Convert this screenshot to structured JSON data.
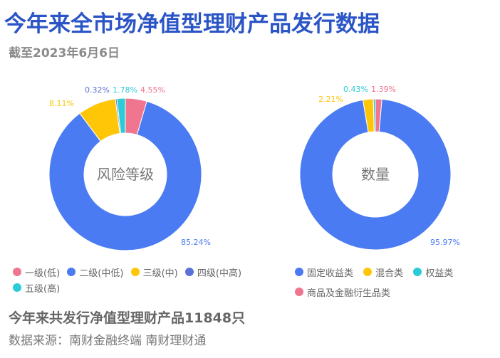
{
  "header": {
    "title": "今年来全市场净值型理财产品发行数据",
    "subtitle": "截至2023年6月6日"
  },
  "footer": {
    "summary": "今年来共发行净值型理财产品11848只",
    "source": "数据来源：南财金融终端 南财理财通"
  },
  "colors": {
    "title": "#2B55C6",
    "pink": "#F0758F",
    "blue": "#4A7BF2",
    "yellow": "#FFC608",
    "indigo": "#5C71D8",
    "cyan": "#2CCBD8"
  },
  "chart_data": [
    {
      "type": "pie",
      "variant": "donut",
      "title": "风险等级",
      "categories": [
        "一级(低)",
        "二级(中低)",
        "三级(中)",
        "四级(中高)",
        "五级(高)"
      ],
      "values": [
        4.55,
        85.24,
        8.11,
        0.32,
        1.78
      ],
      "value_labels": [
        "4.55%",
        "85.24%",
        "8.11%",
        "0.32%",
        "1.78%"
      ],
      "colors": [
        "#F0758F",
        "#4A7BF2",
        "#FFC608",
        "#5C71D8",
        "#2CCBD8"
      ],
      "legend_position": "bottom",
      "start_angle": "12 o'clock, clockwise"
    },
    {
      "type": "pie",
      "variant": "donut",
      "title": "数量",
      "categories": [
        "商品及金融衍生品类",
        "固定收益类",
        "混合类",
        "权益类"
      ],
      "values": [
        1.39,
        95.97,
        2.21,
        0.43
      ],
      "value_labels": [
        "1.39%",
        "95.97%",
        "2.21%",
        "0.43%"
      ],
      "colors": [
        "#F0758F",
        "#4A7BF2",
        "#FFC608",
        "#2CCBD8"
      ],
      "legend_position": "bottom",
      "start_angle": "12 o'clock, clockwise"
    }
  ],
  "legends": {
    "left": [
      {
        "label": "一级(低)",
        "color": "#F0758F"
      },
      {
        "label": "二级(中低)",
        "color": "#4A7BF2"
      },
      {
        "label": "三级(中)",
        "color": "#FFC608"
      },
      {
        "label": "四级(中高)",
        "color": "#5C71D8"
      },
      {
        "label": "五级(高)",
        "color": "#2CCBD8"
      }
    ],
    "right": [
      {
        "label": "固定收益类",
        "color": "#4A7BF2"
      },
      {
        "label": "混合类",
        "color": "#FFC608"
      },
      {
        "label": "权益类",
        "color": "#2CCBD8"
      },
      {
        "label": "商品及金融衍生品类",
        "color": "#F0758F"
      }
    ]
  }
}
